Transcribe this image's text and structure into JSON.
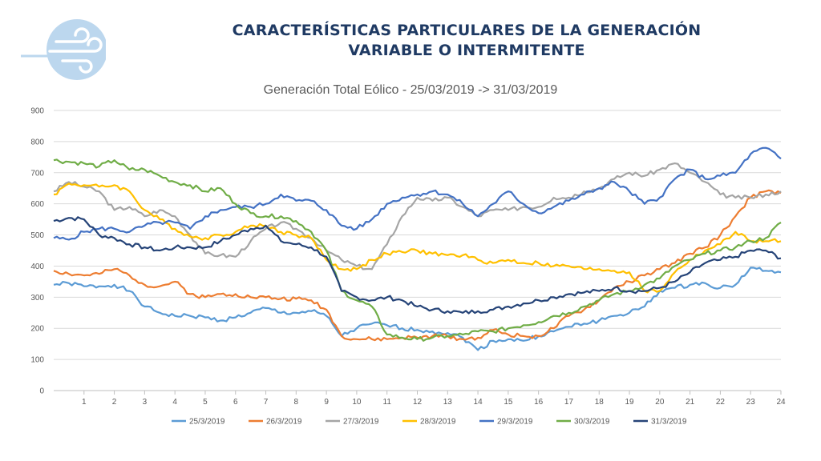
{
  "header": {
    "title_line1": "CARACTERÍSTICAS PARTICULARES DE LA GENERACIÓN",
    "title_line2": "VARIABLE O INTERMITENTE",
    "logo_icon": "wind-icon"
  },
  "colors": {
    "logo": "#bcd7ee",
    "title": "#1f3a63",
    "grid": "#d9d9d9",
    "axis_text": "#595959"
  },
  "chart_data": {
    "type": "line",
    "title": "Generación Total Eólico - 25/03/2019 -> 31/03/2019",
    "xlabel": "",
    "ylabel": "",
    "xlim": [
      0,
      24
    ],
    "ylim": [
      0,
      900
    ],
    "x_ticks": [
      1,
      2,
      3,
      4,
      5,
      6,
      7,
      8,
      9,
      10,
      11,
      12,
      13,
      14,
      15,
      16,
      17,
      18,
      19,
      20,
      21,
      22,
      23,
      24
    ],
    "y_ticks": [
      0,
      100,
      200,
      300,
      400,
      500,
      600,
      700,
      800,
      900
    ],
    "grid": true,
    "legend": "bottom",
    "x": [
      0,
      0.5,
      1,
      1.5,
      2,
      2.5,
      3,
      3.5,
      4,
      4.5,
      5,
      5.5,
      6,
      6.5,
      7,
      7.5,
      8,
      8.5,
      9,
      9.5,
      10,
      10.5,
      11,
      11.5,
      12,
      12.5,
      13,
      13.5,
      14,
      14.5,
      15,
      15.5,
      16,
      16.5,
      17,
      17.5,
      18,
      18.5,
      19,
      19.5,
      20,
      20.5,
      21,
      21.5,
      22,
      22.5,
      23,
      23.5,
      24
    ],
    "series": [
      {
        "name": "25/3/2019",
        "color": "#5b9bd5",
        "values": [
          340,
          345,
          335,
          335,
          340,
          320,
          270,
          250,
          240,
          240,
          235,
          225,
          235,
          250,
          265,
          250,
          250,
          255,
          240,
          175,
          200,
          215,
          210,
          200,
          195,
          190,
          185,
          170,
          130,
          160,
          165,
          160,
          175,
          190,
          205,
          215,
          225,
          240,
          250,
          270,
          320,
          330,
          340,
          345,
          330,
          340,
          395,
          385,
          380
        ]
      },
      {
        "name": "26/3/2019",
        "color": "#ed7d31",
        "values": [
          385,
          375,
          370,
          375,
          390,
          370,
          340,
          335,
          350,
          310,
          300,
          310,
          310,
          300,
          300,
          295,
          295,
          290,
          260,
          175,
          165,
          165,
          165,
          170,
          170,
          175,
          175,
          165,
          170,
          195,
          180,
          175,
          175,
          200,
          240,
          260,
          290,
          330,
          350,
          370,
          390,
          410,
          440,
          460,
          500,
          560,
          620,
          640,
          635
        ]
      },
      {
        "name": "27/3/2019",
        "color": "#a5a5a5",
        "values": [
          640,
          670,
          655,
          640,
          580,
          590,
          560,
          580,
          560,
          500,
          440,
          435,
          430,
          480,
          520,
          540,
          520,
          490,
          450,
          420,
          400,
          390,
          470,
          560,
          620,
          610,
          620,
          590,
          560,
          580,
          580,
          590,
          590,
          620,
          620,
          640,
          650,
          680,
          700,
          690,
          710,
          730,
          700,
          670,
          630,
          620,
          620,
          630,
          640
        ]
      },
      {
        "name": "28/3/2019",
        "color": "#ffc000",
        "values": [
          630,
          665,
          660,
          655,
          660,
          640,
          580,
          550,
          520,
          495,
          490,
          500,
          510,
          530,
          530,
          510,
          500,
          490,
          420,
          390,
          390,
          420,
          440,
          445,
          450,
          440,
          435,
          435,
          420,
          410,
          420,
          410,
          410,
          400,
          400,
          390,
          390,
          385,
          380,
          320,
          320,
          380,
          420,
          450,
          470,
          510,
          480,
          480,
          480
        ]
      },
      {
        "name": "29/3/2019",
        "color": "#4472c4",
        "values": [
          490,
          485,
          510,
          520,
          520,
          510,
          530,
          540,
          540,
          520,
          560,
          580,
          590,
          590,
          600,
          630,
          610,
          610,
          580,
          530,
          520,
          550,
          600,
          620,
          630,
          640,
          630,
          600,
          560,
          600,
          640,
          600,
          570,
          590,
          610,
          630,
          650,
          670,
          640,
          600,
          620,
          680,
          710,
          680,
          690,
          700,
          760,
          780,
          745
        ]
      },
      {
        "name": "30/3/2019",
        "color": "#70ad47",
        "values": [
          740,
          735,
          730,
          720,
          740,
          710,
          710,
          690,
          670,
          660,
          640,
          650,
          600,
          570,
          560,
          560,
          545,
          510,
          450,
          320,
          290,
          270,
          180,
          170,
          165,
          170,
          175,
          180,
          190,
          190,
          200,
          210,
          220,
          240,
          250,
          270,
          290,
          310,
          320,
          340,
          360,
          400,
          420,
          440,
          450,
          460,
          480,
          490,
          540
        ]
      },
      {
        "name": "31/3/2019",
        "color": "#264478",
        "values": [
          545,
          555,
          550,
          500,
          490,
          470,
          460,
          450,
          460,
          460,
          460,
          480,
          500,
          520,
          530,
          480,
          470,
          460,
          430,
          320,
          300,
          290,
          300,
          290,
          270,
          260,
          255,
          250,
          255,
          260,
          270,
          280,
          290,
          300,
          310,
          315,
          320,
          330,
          320,
          320,
          330,
          350,
          380,
          410,
          420,
          430,
          450,
          450,
          425
        ]
      }
    ]
  }
}
